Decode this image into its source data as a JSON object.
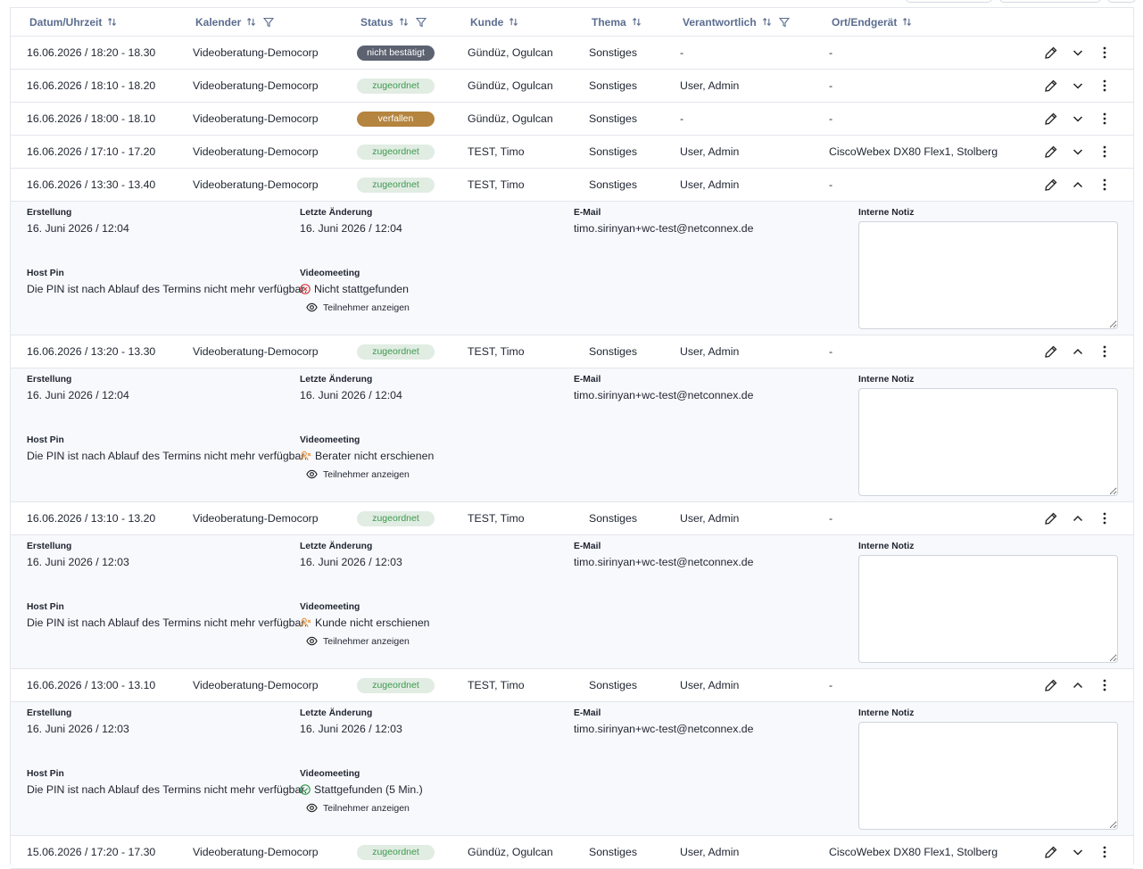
{
  "header": {
    "columns": [
      {
        "label": "Datum/Uhrzeit",
        "sort": true,
        "filter": false
      },
      {
        "label": "Kalender",
        "sort": true,
        "filter": true
      },
      {
        "label": "Status",
        "sort": true,
        "filter": true
      },
      {
        "label": "Kunde",
        "sort": true,
        "filter": false
      },
      {
        "label": "Thema",
        "sort": true,
        "filter": false
      },
      {
        "label": "Verantwortlich",
        "sort": true,
        "filter": true
      },
      {
        "label": "Ort/Endgerät",
        "sort": true,
        "filter": false
      }
    ]
  },
  "detail_labels": {
    "erstellung": "Erstellung",
    "letzte_aenderung": "Letzte Änderung",
    "email": "E-Mail",
    "notiz": "Interne Notiz",
    "host_pin": "Host Pin",
    "videomeeting": "Videomeeting",
    "teilnehmer": "Teilnehmer anzeigen"
  },
  "rows": [
    {
      "datum": "16.06.2026 / 18:20 - 18.30",
      "kalender": "Videoberatung-Democorp",
      "status": "nicht bestätigt",
      "status_style": "dark",
      "kunde": "Gündüz, Ogulcan",
      "thema": "Sonstiges",
      "verantwortlich": "-",
      "ort": "-"
    },
    {
      "datum": "16.06.2026 / 18:10 - 18.20",
      "kalender": "Videoberatung-Democorp",
      "status": "zugeordnet",
      "status_style": "green",
      "kunde": "Gündüz, Ogulcan",
      "thema": "Sonstiges",
      "verantwortlich": "User, Admin",
      "ort": "-"
    },
    {
      "datum": "16.06.2026 / 18:00 - 18.10",
      "kalender": "Videoberatung-Democorp",
      "status": "verfallen",
      "status_style": "brown",
      "kunde": "Gündüz, Ogulcan",
      "thema": "Sonstiges",
      "verantwortlich": "-",
      "ort": "-"
    },
    {
      "datum": "16.06.2026 / 17:10 - 17.20",
      "kalender": "Videoberatung-Democorp",
      "status": "zugeordnet",
      "status_style": "green",
      "kunde": "TEST, Timo",
      "thema": "Sonstiges",
      "verantwortlich": "User, Admin",
      "ort": "CiscoWebex DX80 Flex1, Stolberg"
    },
    {
      "datum": "16.06.2026 / 13:30 - 13.40",
      "kalender": "Videoberatung-Democorp",
      "status": "zugeordnet",
      "status_style": "green",
      "kunde": "TEST, Timo",
      "thema": "Sonstiges",
      "verantwortlich": "User, Admin",
      "ort": "-",
      "details": {
        "erstellung": "16. Juni 2026 / 12:04",
        "letzte_aenderung": "16. Juni 2026 / 12:04",
        "email": "timo.sirinyan+wc-test@netconnex.de",
        "host_pin": "Die PIN ist nach Ablauf des Termins nicht mehr verfügbar.",
        "meeting": "Nicht stattgefunden",
        "meeting_icon": "error"
      }
    },
    {
      "datum": "16.06.2026 / 13:20 - 13.30",
      "kalender": "Videoberatung-Democorp",
      "status": "zugeordnet",
      "status_style": "green",
      "kunde": "TEST, Timo",
      "thema": "Sonstiges",
      "verantwortlich": "User, Admin",
      "ort": "-",
      "details": {
        "erstellung": "16. Juni 2026 / 12:04",
        "letzte_aenderung": "16. Juni 2026 / 12:04",
        "email": "timo.sirinyan+wc-test@netconnex.de",
        "host_pin": "Die PIN ist nach Ablauf des Termins nicht mehr verfügbar.",
        "meeting": "Berater nicht erschienen",
        "meeting_icon": "user-x"
      }
    },
    {
      "datum": "16.06.2026 / 13:10 - 13.20",
      "kalender": "Videoberatung-Democorp",
      "status": "zugeordnet",
      "status_style": "green",
      "kunde": "TEST, Timo",
      "thema": "Sonstiges",
      "verantwortlich": "User, Admin",
      "ort": "-",
      "details": {
        "erstellung": "16. Juni 2026 / 12:03",
        "letzte_aenderung": "16. Juni 2026 / 12:03",
        "email": "timo.sirinyan+wc-test@netconnex.de",
        "host_pin": "Die PIN ist nach Ablauf des Termins nicht mehr verfügbar.",
        "meeting": "Kunde nicht erschienen",
        "meeting_icon": "user-x"
      }
    },
    {
      "datum": "16.06.2026 / 13:00 - 13.10",
      "kalender": "Videoberatung-Democorp",
      "status": "zugeordnet",
      "status_style": "green",
      "kunde": "TEST, Timo",
      "thema": "Sonstiges",
      "verantwortlich": "User, Admin",
      "ort": "-",
      "details": {
        "erstellung": "16. Juni 2026 / 12:03",
        "letzte_aenderung": "16. Juni 2026 / 12:03",
        "email": "timo.sirinyan+wc-test@netconnex.de",
        "host_pin": "Die PIN ist nach Ablauf des Termins nicht mehr verfügbar.",
        "meeting": "Stattgefunden (5 Min.)",
        "meeting_icon": "check"
      }
    },
    {
      "datum": "15.06.2026 / 17:20 - 17.30",
      "kalender": "Videoberatung-Democorp",
      "status": "zugeordnet",
      "status_style": "green",
      "kunde": "Gündüz, Ogulcan",
      "thema": "Sonstiges",
      "verantwortlich": "User, Admin",
      "ort": "CiscoWebex DX80 Flex1, Stolberg"
    }
  ]
}
